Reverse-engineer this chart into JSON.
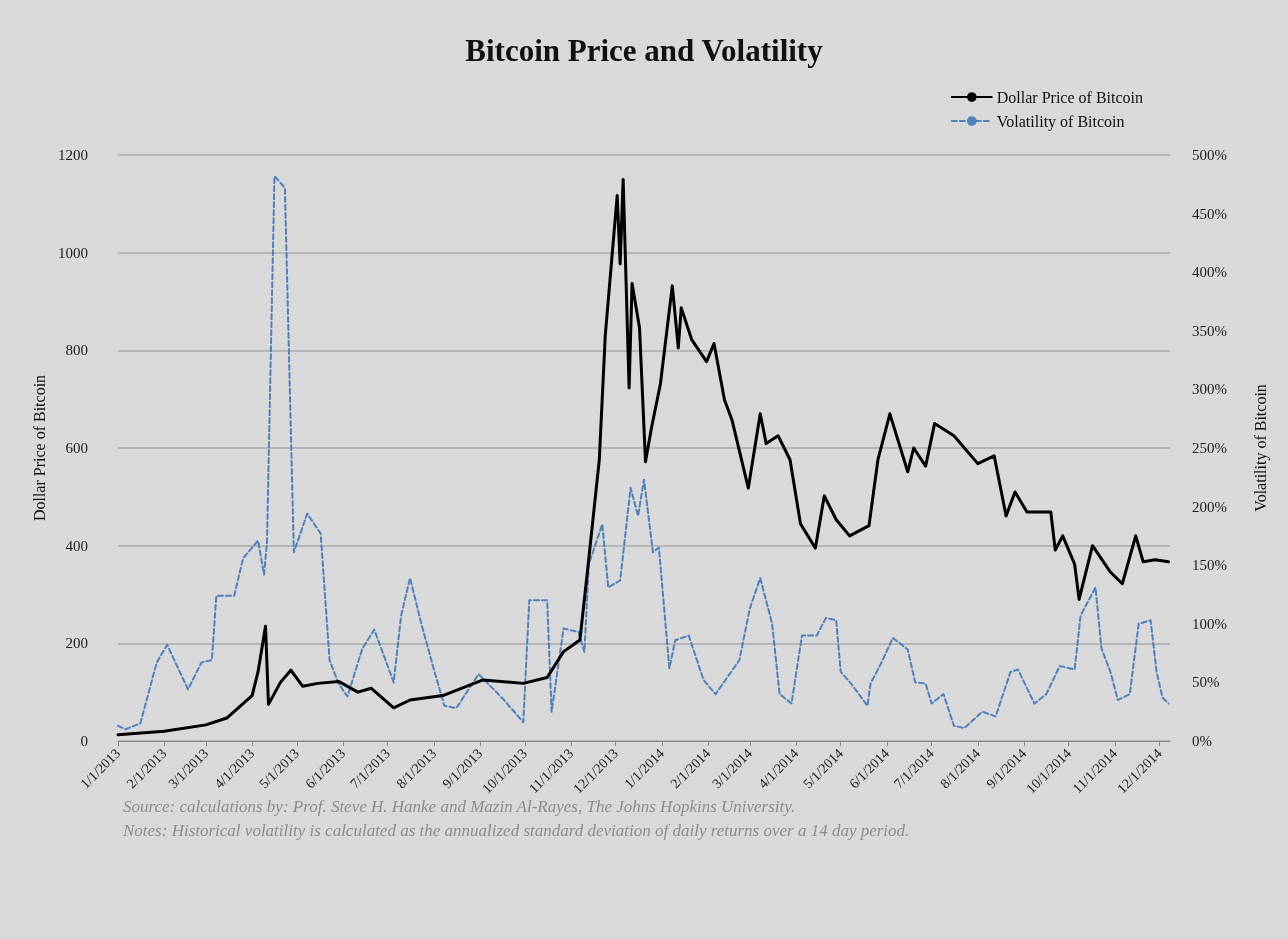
{
  "chart_data": {
    "type": "line",
    "title": "Bitcoin Price and Volatility",
    "ylabel": "Dollar Price of Bitcoin",
    "y2label": "Volatility of Bitcoin",
    "annotations": [
      "Source: calculations by: Prof. Steve H. Hanke and Mazin Al-Rayes, The Johns Hopkins University.",
      "Notes: Historical volatility is calculated as the annualized standard deviation of daily returns over a 14 day period."
    ],
    "xlim": [
      "2013-01-01",
      "2014-12-08"
    ],
    "xticks": [
      {
        "value": "2013-01-01",
        "label": "1/1/2013"
      },
      {
        "value": "2013-02-01",
        "label": "2/1/2013"
      },
      {
        "value": "2013-03-01",
        "label": "3/1/2013"
      },
      {
        "value": "2013-04-01",
        "label": "4/1/2013"
      },
      {
        "value": "2013-05-01",
        "label": "5/1/2013"
      },
      {
        "value": "2013-06-01",
        "label": "6/1/2013"
      },
      {
        "value": "2013-07-01",
        "label": "7/1/2013"
      },
      {
        "value": "2013-08-01",
        "label": "8/1/2013"
      },
      {
        "value": "2013-09-01",
        "label": "9/1/2013"
      },
      {
        "value": "2013-10-01",
        "label": "10/1/2013"
      },
      {
        "value": "2013-11-01",
        "label": "11/1/2013"
      },
      {
        "value": "2013-12-01",
        "label": "12/1/2013"
      },
      {
        "value": "2014-01-01",
        "label": "1/1/2014"
      },
      {
        "value": "2014-02-01",
        "label": "2/1/2014"
      },
      {
        "value": "2014-03-01",
        "label": "3/1/2014"
      },
      {
        "value": "2014-04-01",
        "label": "4/1/2014"
      },
      {
        "value": "2014-05-01",
        "label": "5/1/2014"
      },
      {
        "value": "2014-06-01",
        "label": "6/1/2014"
      },
      {
        "value": "2014-07-01",
        "label": "7/1/2014"
      },
      {
        "value": "2014-08-01",
        "label": "8/1/2014"
      },
      {
        "value": "2014-09-01",
        "label": "9/1/2014"
      },
      {
        "value": "2014-10-01",
        "label": "10/1/2014"
      },
      {
        "value": "2014-11-01",
        "label": "11/1/2014"
      },
      {
        "value": "2014-12-01",
        "label": "12/1/2014"
      }
    ],
    "ylim": [
      0,
      1200
    ],
    "yticks": [
      0,
      200,
      400,
      600,
      800,
      1000,
      1200
    ],
    "y2lim": [
      0,
      500
    ],
    "y2ticks": [
      {
        "value": 0,
        "label": "0%"
      },
      {
        "value": 50,
        "label": "50%"
      },
      {
        "value": 100,
        "label": "100%"
      },
      {
        "value": 150,
        "label": "150%"
      },
      {
        "value": 200,
        "label": "200%"
      },
      {
        "value": 250,
        "label": "250%"
      },
      {
        "value": 300,
        "label": "300%"
      },
      {
        "value": 350,
        "label": "350%"
      },
      {
        "value": 400,
        "label": "400%"
      },
      {
        "value": 450,
        "label": "450%"
      },
      {
        "value": 500,
        "label": "500%"
      }
    ],
    "grid": "y",
    "legend": "top right",
    "marker": "none",
    "series": [
      {
        "name": "Dollar Price of Bitcoin",
        "color": "#000000",
        "line_style": "solid",
        "x": [
          "2013-01-01",
          "2013-02-01",
          "2013-03-01",
          "2013-03-15",
          "2013-04-01",
          "2013-04-05",
          "2013-04-10",
          "2013-04-12",
          "2013-04-20",
          "2013-04-27",
          "2013-05-05",
          "2013-05-15",
          "2013-05-29",
          "2013-06-11",
          "2013-06-20",
          "2013-07-05",
          "2013-07-16",
          "2013-08-07",
          "2013-09-03",
          "2013-09-30",
          "2013-10-16",
          "2013-10-27",
          "2013-11-07",
          "2013-11-12",
          "2013-11-20",
          "2013-11-24",
          "2013-12-02",
          "2013-12-04",
          "2013-12-06",
          "2013-12-10",
          "2013-12-12",
          "2013-12-17",
          "2013-12-21",
          "2013-12-25",
          "2013-12-31",
          "2014-01-08",
          "2014-01-12",
          "2014-01-14",
          "2014-01-21",
          "2014-01-31",
          "2014-02-05",
          "2014-02-12",
          "2014-02-17",
          "2014-02-28",
          "2014-03-08",
          "2014-03-12",
          "2014-03-20",
          "2014-03-28",
          "2014-04-04",
          "2014-04-14",
          "2014-04-20",
          "2014-04-28",
          "2014-05-07",
          "2014-05-20",
          "2014-05-26",
          "2014-06-03",
          "2014-06-15",
          "2014-06-19",
          "2014-06-27",
          "2014-07-03",
          "2014-07-16",
          "2014-08-01",
          "2014-08-12",
          "2014-08-20",
          "2014-08-26",
          "2014-09-03",
          "2014-09-19",
          "2014-09-22",
          "2014-09-27",
          "2014-10-05",
          "2014-10-08",
          "2014-10-17",
          "2014-10-29",
          "2014-11-06",
          "2014-11-15",
          "2014-11-20",
          "2014-11-28",
          "2014-12-07"
        ],
        "values": [
          13,
          20,
          33,
          47,
          93,
          142,
          235,
          75,
          120,
          145,
          112,
          118,
          122,
          100,
          108,
          68,
          84,
          93,
          125,
          118,
          130,
          183,
          207,
          346,
          576,
          830,
          1117,
          977,
          1150,
          723,
          937,
          846,
          572,
          641,
          731,
          932,
          805,
          887,
          822,
          777,
          814,
          699,
          658,
          518,
          670,
          609,
          625,
          576,
          445,
          395,
          502,
          453,
          420,
          441,
          576,
          670,
          551,
          600,
          563,
          650,
          625,
          568,
          584,
          461,
          510,
          469,
          469,
          391,
          420,
          362,
          290,
          400,
          346,
          322,
          420,
          367,
          371,
          367
        ]
      },
      {
        "name": "Volatility of Bitcoin",
        "color": "#4f81bd",
        "line_style": "dashed",
        "axis": "y2",
        "x": [
          "2013-01-01",
          "2013-01-06",
          "2013-01-16",
          "2013-01-27",
          "2013-02-03",
          "2013-02-17",
          "2013-02-26",
          "2013-03-05",
          "2013-03-08",
          "2013-03-20",
          "2013-03-26",
          "2013-04-05",
          "2013-04-09",
          "2013-04-11",
          "2013-04-16",
          "2013-04-23",
          "2013-04-29",
          "2013-05-08",
          "2013-05-17",
          "2013-05-23",
          "2013-05-29",
          "2013-06-04",
          "2013-06-14",
          "2013-06-22",
          "2013-07-05",
          "2013-07-10",
          "2013-07-16",
          "2013-07-24",
          "2013-08-01",
          "2013-08-08",
          "2013-08-16",
          "2013-08-31",
          "2013-09-04",
          "2013-09-17",
          "2013-09-30",
          "2013-10-04",
          "2013-10-16",
          "2013-10-19",
          "2013-10-27",
          "2013-11-06",
          "2013-11-10",
          "2013-11-13",
          "2013-11-22",
          "2013-11-26",
          "2013-12-04",
          "2013-12-11",
          "2013-12-16",
          "2013-12-20",
          "2013-12-26",
          "2013-12-30",
          "2014-01-06",
          "2014-01-10",
          "2014-01-19",
          "2014-01-29",
          "2014-02-06",
          "2014-02-22",
          "2014-03-01",
          "2014-03-08",
          "2014-03-16",
          "2014-03-21",
          "2014-03-29",
          "2014-04-05",
          "2014-04-15",
          "2014-04-21",
          "2014-04-28",
          "2014-05-01",
          "2014-05-08",
          "2014-05-19",
          "2014-05-21",
          "2014-05-28",
          "2014-06-05",
          "2014-06-15",
          "2014-06-20",
          "2014-06-27",
          "2014-07-01",
          "2014-07-09",
          "2014-07-16",
          "2014-07-23",
          "2014-08-04",
          "2014-08-13",
          "2014-08-23",
          "2014-08-28",
          "2014-09-08",
          "2014-09-16",
          "2014-09-25",
          "2014-10-05",
          "2014-10-09",
          "2014-10-19",
          "2014-10-23",
          "2014-10-29",
          "2014-11-03",
          "2014-11-11",
          "2014-11-17",
          "2014-11-25",
          "2014-11-29",
          "2014-12-03",
          "2014-12-07"
        ],
        "values": [
          13,
          10,
          15,
          67,
          82,
          44,
          67,
          69,
          124,
          124,
          156,
          171,
          142,
          170,
          482,
          472,
          161,
          194,
          177,
          69,
          49,
          38,
          79,
          95,
          50,
          107,
          139,
          98,
          61,
          30,
          28,
          57,
          52,
          35,
          16,
          120,
          120,
          25,
          96,
          93,
          76,
          151,
          185,
          131,
          137,
          216,
          192,
          223,
          161,
          165,
          62,
          86,
          90,
          52,
          40,
          69,
          113,
          139,
          100,
          40,
          32,
          90,
          90,
          105,
          103,
          59,
          49,
          30,
          49,
          66,
          88,
          78,
          50,
          49,
          32,
          40,
          13,
          11,
          25,
          21,
          59,
          61,
          32,
          40,
          64,
          61,
          107,
          131,
          79,
          59,
          35,
          40,
          100,
          103,
          59,
          37,
          32
        ]
      }
    ]
  }
}
